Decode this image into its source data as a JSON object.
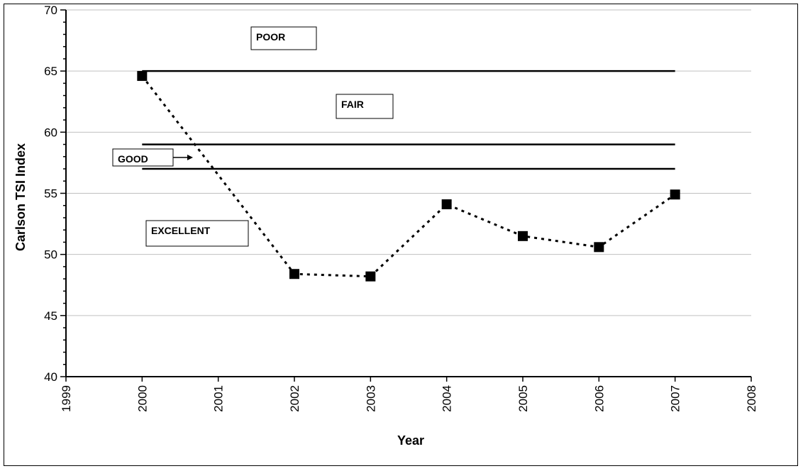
{
  "chart_data": {
    "type": "scatter",
    "title": "",
    "xlabel": "Year",
    "ylabel": "Carlson TSI Index",
    "xlim": [
      1999,
      2008
    ],
    "ylim": [
      40,
      70
    ],
    "x_ticks": [
      "1999",
      "2000",
      "2001",
      "2002",
      "2003",
      "2004",
      "2005",
      "2006",
      "2007",
      "2008"
    ],
    "y_ticks": [
      "40",
      "45",
      "50",
      "55",
      "60",
      "65",
      "70"
    ],
    "grid": "horizontal",
    "series": [
      {
        "name": "",
        "line_style": "dotted",
        "marker": "square",
        "x": [
          2000,
          2002,
          2003,
          2004,
          2005,
          2006,
          2007
        ],
        "y": [
          64.6,
          48.4,
          48.2,
          54.1,
          51.5,
          50.6,
          54.9
        ]
      }
    ],
    "threshold_lines": [
      {
        "y": 65,
        "x_range": [
          2000,
          2007
        ]
      },
      {
        "y": 59,
        "x_range": [
          2000,
          2007
        ]
      },
      {
        "y": 57,
        "x_range": [
          2000,
          2007
        ]
      }
    ],
    "zone_labels": [
      {
        "text": "POOR"
      },
      {
        "text": "FAIR"
      },
      {
        "text": "GOOD"
      },
      {
        "text": "EXCELLENT"
      }
    ]
  }
}
